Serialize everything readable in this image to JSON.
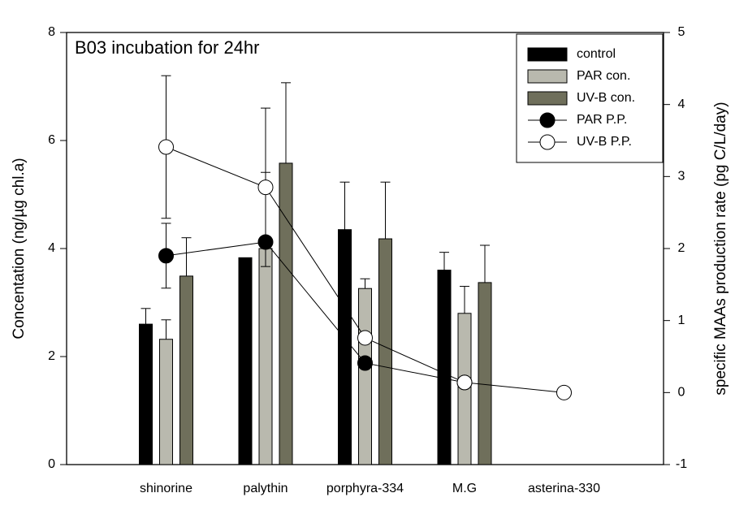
{
  "chart_data": {
    "type": "bar",
    "title": "B03 incubation for 24hr",
    "y_label": "Concentation (ng/µg chl.a)",
    "y2_label": "specific MAAs production rate (pg C/L/day)",
    "categories": [
      "shinorine",
      "palythin",
      "porphyra-334",
      "M.G",
      "asterina-330"
    ],
    "ylim": [
      0,
      8
    ],
    "yticks": [
      0,
      2,
      4,
      6,
      8
    ],
    "y2lim": [
      -1,
      5
    ],
    "y2ticks": [
      -1,
      0,
      1,
      2,
      3,
      4,
      5
    ],
    "legend": "upper right",
    "series": [
      {
        "name": "control",
        "color": "#000000",
        "values": [
          2.6,
          3.83,
          4.35,
          3.6,
          null
        ],
        "error": [
          0.29,
          null,
          0.88,
          0.33,
          null
        ]
      },
      {
        "name": "PAR con.",
        "color": "#b9b9ae",
        "values": [
          2.32,
          4.0,
          3.26,
          2.8,
          null
        ],
        "error": [
          0.36,
          1.41,
          0.18,
          0.5,
          null
        ]
      },
      {
        "name": "UV-B con.",
        "color": "#6f6f5b",
        "values": [
          3.49,
          5.58,
          4.18,
          3.37,
          null
        ],
        "error": [
          0.71,
          1.49,
          1.05,
          0.69,
          null
        ]
      },
      {
        "name": "PAR P.P.",
        "type": "line",
        "axis": "y2",
        "color": "#000000",
        "values": [
          1.9,
          2.09,
          0.41,
          0.14,
          null
        ],
        "error": [
          0.45,
          null,
          null,
          null,
          null
        ]
      },
      {
        "name": "UV-B P.P.",
        "type": "line",
        "axis": "y2",
        "color": "#ffffff",
        "values": [
          3.41,
          2.85,
          0.76,
          0.14,
          0.0
        ],
        "error": [
          0.99,
          1.1,
          null,
          null,
          null
        ]
      }
    ]
  }
}
